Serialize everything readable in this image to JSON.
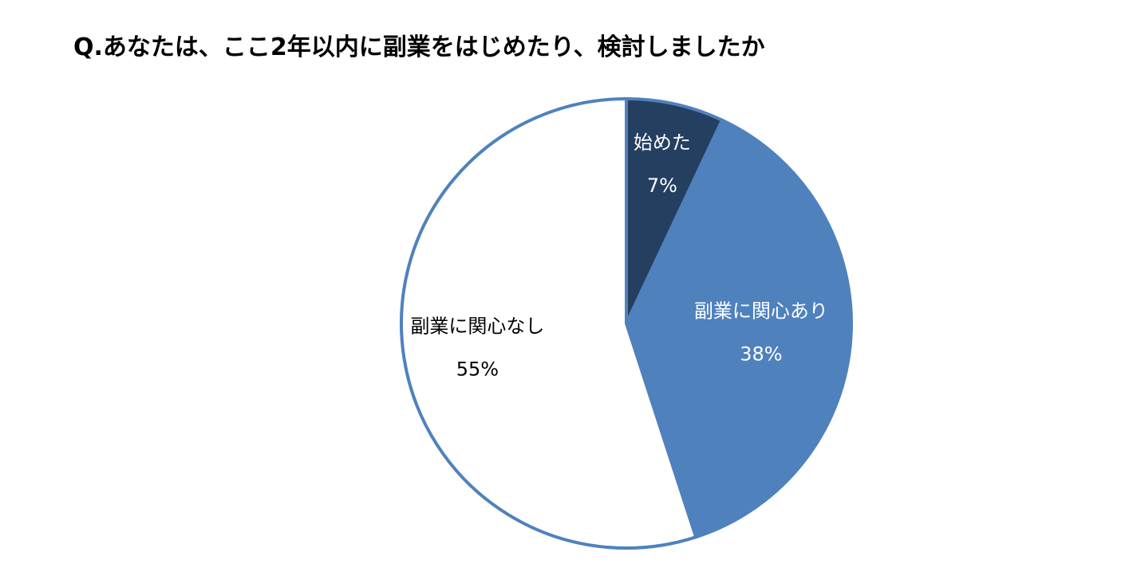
{
  "title": "Q.あなたは、ここ2年以内に副業をはじめたり、検討しましたか",
  "chart_data": {
    "type": "pie",
    "title": "Q.あなたは、ここ2年以内に副業をはじめたり、検討しましたか",
    "start": "12 o'clock",
    "direction": "clockwise",
    "slices": [
      {
        "label": "始めた",
        "value": 7,
        "value_label": "7%",
        "color": "#243F60",
        "label_color": "#ffffff"
      },
      {
        "label": "副業に関心あり",
        "value": 38,
        "value_label": "38%",
        "color": "#4F81BD",
        "label_color": "#ffffff"
      },
      {
        "label": "副業に関心なし",
        "value": 55,
        "value_label": "55%",
        "color": "#ffffff",
        "label_color": "#000000"
      }
    ],
    "border_color": "#4F81BD"
  }
}
